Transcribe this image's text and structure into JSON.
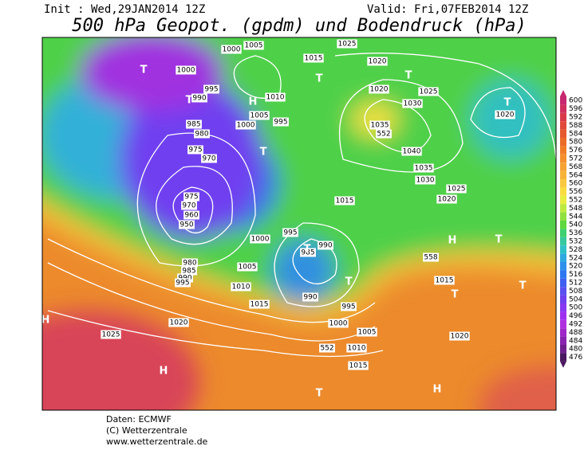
{
  "header": {
    "init": "Init : Wed,29JAN2014 12Z",
    "valid": "Valid: Fri,07FEB2014 12Z",
    "title": "500 hPa Geopot. (gpdm) und Bodendruck (hPa)"
  },
  "map": {
    "labels": [
      "1000",
      "1005",
      "1015",
      "1025",
      "1000",
      "995",
      "990",
      "1010",
      "1005",
      "1000",
      "995",
      "985",
      "980",
      "975",
      "970",
      "975",
      "970",
      "960",
      "950",
      "980",
      "985",
      "990",
      "995",
      "1000",
      "1005",
      "1010",
      "1015",
      "1020",
      "1025",
      "995",
      "990",
      "985",
      "990",
      "995",
      "1000",
      "1005",
      "1010",
      "1015",
      "1015",
      "1020",
      "1030",
      "1025",
      "1035",
      "1040",
      "1035",
      "1030",
      "1025",
      "1020",
      "1020",
      "1015",
      "1020",
      "1020",
      "552",
      "558",
      "552"
    ],
    "centers": [
      "T",
      "T",
      "H",
      "T",
      "T",
      "T",
      "T",
      "T",
      "T",
      "H",
      "T",
      "T",
      "T",
      "H",
      "H",
      "T",
      "H"
    ]
  },
  "colorbar": {
    "ticks": [
      600,
      596,
      592,
      588,
      584,
      580,
      576,
      572,
      568,
      564,
      560,
      556,
      552,
      548,
      544,
      540,
      536,
      532,
      528,
      524,
      520,
      516,
      512,
      508,
      504,
      500,
      496,
      492,
      488,
      484,
      480,
      476
    ],
    "colors": [
      "#c82870",
      "#d03060",
      "#d83a4a",
      "#e04a3a",
      "#e65a30",
      "#ec6c2a",
      "#f07e28",
      "#f49030",
      "#f6a234",
      "#f8b43a",
      "#f8c840",
      "#f8dc40",
      "#e8ec40",
      "#bcea40",
      "#90e040",
      "#60d840",
      "#40d070",
      "#38c8a0",
      "#30c0c8",
      "#30a8e0",
      "#3090ec",
      "#3078f0",
      "#4060f0",
      "#5a50f0",
      "#7040f0",
      "#8838f0",
      "#a030f0",
      "#b030e0",
      "#a028c8",
      "#8a24b0",
      "#70208e",
      "#4a1860"
    ]
  },
  "footer": [
    "Daten: ECMWF",
    "(C) Wetterzentrale",
    "www.wetterzentrale.de"
  ]
}
